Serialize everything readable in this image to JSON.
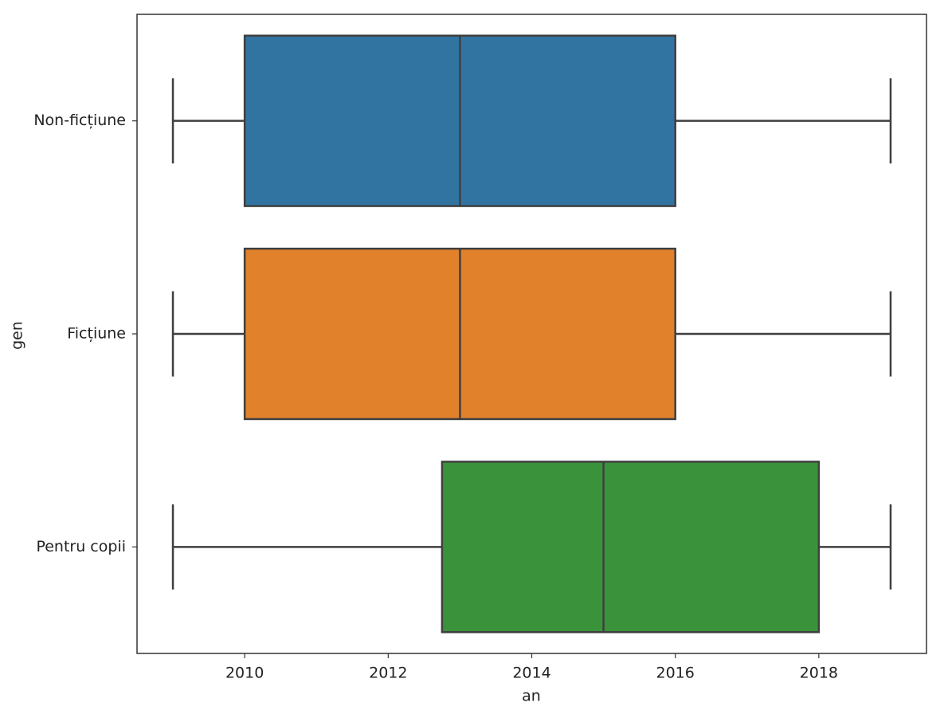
{
  "chart_data": {
    "type": "box",
    "orientation": "horizontal",
    "x_label": "an",
    "y_label": "gen",
    "categories": [
      "Non-ficțiune",
      "Ficțiune",
      "Pentru copii"
    ],
    "boxes": [
      {
        "whislo": 2009,
        "q1": 2010,
        "med": 2013,
        "q3": 2016,
        "whishi": 2019,
        "color": "#3274a1"
      },
      {
        "whislo": 2009,
        "q1": 2010,
        "med": 2013,
        "q3": 2016,
        "whishi": 2019,
        "color": "#e1812c"
      },
      {
        "whislo": 2009,
        "q1": 2012.75,
        "med": 2015,
        "q3": 2018,
        "whishi": 2019,
        "color": "#3a923a"
      }
    ],
    "xlim": [
      2008.5,
      2019.5
    ],
    "xticks": [
      2010,
      2012,
      2014,
      2016,
      2018
    ]
  }
}
